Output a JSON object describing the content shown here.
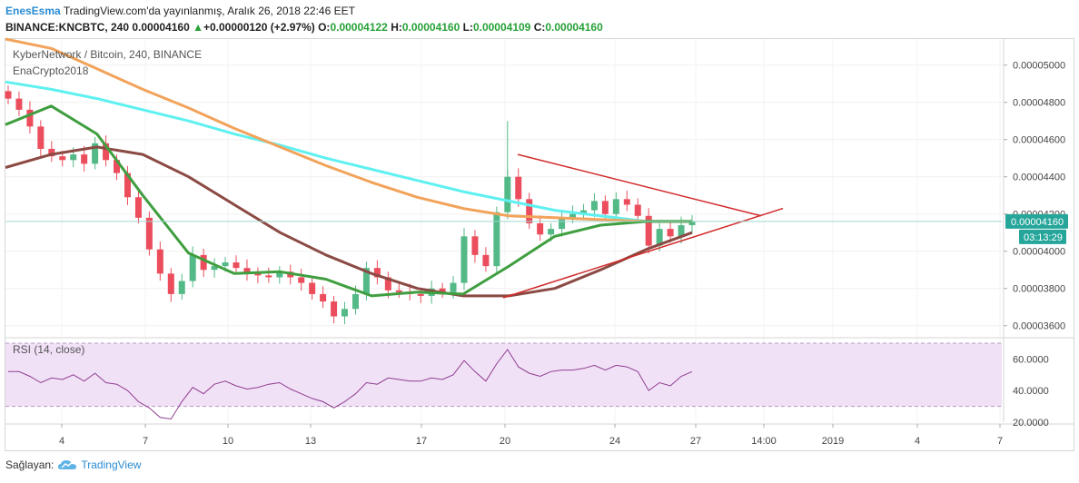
{
  "header": {
    "author": "EnesEsma",
    "published_text": " TradingView.com'da yayınlanmış, Aralık 26, 2018 22:46 EET",
    "symbol_line_prefix": "BINANCE:KNCBTC, 240  0.00004160 ",
    "change_arrow": "▲",
    "change_text": "+0.00000120 (+2.97%)",
    "o_label": "O:",
    "o_value": "0.00004122",
    "h_label": "H:",
    "h_value": "0.00004160",
    "l_label": "L:",
    "l_value": "0.00004109",
    "c_label": "C:",
    "c_value": "0.00004160"
  },
  "legend": {
    "title": "KyberNetwork / Bitcoin, 240, BINANCE",
    "subtitle": "EnaCrypto2018",
    "rsi_label": "RSI (14, close)"
  },
  "footer": {
    "provided_by": "Sağlayan:",
    "brand": "TradingView"
  },
  "colors": {
    "up": "#53b987",
    "down": "#eb4d5c",
    "ma_green": "#3f9e3f",
    "ma_brown": "#8b4a43",
    "ma_orange": "#f2a35b",
    "ma_cyan": "#5ff0f0",
    "trendline": "#d22a2a",
    "rsi_line": "#8e3d8e",
    "rsi_band": "#f1e1f7",
    "price_tag": "#26a69a",
    "accent": "#2a8cd2"
  },
  "chart_data": [
    {
      "type": "candlestick",
      "title": "KyberNetwork / Bitcoin, 240, BINANCE",
      "ylim": [
        3.55e-05,
        5.14e-05
      ],
      "y_ticks": [
        "0.00005000",
        "0.00004800",
        "0.00004600",
        "0.00004400",
        "0.00004200",
        "0.00004000",
        "0.00003800",
        "0.00003600"
      ],
      "y_tick_values": [
        5e-05,
        4.8e-05,
        4.6e-05,
        4.4e-05,
        4.2e-05,
        4e-05,
        3.8e-05,
        3.6e-05
      ],
      "x_ticks": [
        "4",
        "7",
        "10",
        "13",
        "17",
        "20",
        "24",
        "27",
        "14:00",
        "2019",
        "4",
        "7"
      ],
      "last_price": "0.00004160",
      "last_price_value": 4.16e-05,
      "countdown": "03:13:29",
      "grid": true,
      "closes": [
        4.82e-05,
        4.76e-05,
        4.67e-05,
        4.55e-05,
        4.51e-05,
        4.49e-05,
        4.52e-05,
        4.47e-05,
        4.58e-05,
        4.49e-05,
        4.42e-05,
        4.29e-05,
        4.18e-05,
        4.01e-05,
        3.88e-05,
        3.77e-05,
        3.84e-05,
        3.98e-05,
        3.9e-05,
        3.92e-05,
        3.94e-05,
        3.91e-05,
        3.88e-05,
        3.87e-05,
        3.86e-05,
        3.89e-05,
        3.86e-05,
        3.83e-05,
        3.77e-05,
        3.73e-05,
        3.65e-05,
        3.69e-05,
        3.77e-05,
        3.91e-05,
        3.86e-05,
        3.79e-05,
        3.78e-05,
        3.77e-05,
        3.76e-05,
        3.8e-05,
        3.78e-05,
        3.83e-05,
        4.08e-05,
        3.98e-05,
        3.92e-05,
        4.21e-05,
        4.4e-05,
        4.28e-05,
        4.15e-05,
        4.09e-05,
        4.12e-05,
        4.18e-05,
        4.2e-05,
        4.22e-05,
        4.27e-05,
        4.2e-05,
        4.28e-05,
        4.25e-05,
        4.19e-05,
        4.03e-05,
        4.12e-05,
        4.08e-05,
        4.14e-05,
        4.16e-05
      ],
      "moving_averages": [
        {
          "color": "#5ff0f0",
          "values": [
            4.91e-05,
            4.87e-05,
            4.82e-05,
            4.76e-05,
            4.7e-05,
            4.63e-05,
            4.57e-05,
            4.5e-05,
            4.44e-05,
            4.38e-05,
            4.32e-05,
            4.27e-05,
            4.22e-05,
            4.19e-05,
            4.16e-05,
            4.16e-05
          ]
        },
        {
          "color": "#f2a35b",
          "values": [
            5.2e-05,
            5.09e-05,
            4.98e-05,
            4.87e-05,
            4.77e-05,
            4.66e-05,
            4.56e-05,
            4.46e-05,
            4.37e-05,
            4.29e-05,
            4.23e-05,
            4.19e-05,
            4.18e-05,
            4.17e-05,
            4.16e-05,
            4.16e-05
          ]
        },
        {
          "color": "#8b4a43",
          "values": [
            4.45e-05,
            4.52e-05,
            4.56e-05,
            4.52e-05,
            4.4e-05,
            4.25e-05,
            4.1e-05,
            3.98e-05,
            3.88e-05,
            3.8e-05,
            3.76e-05,
            3.76e-05,
            3.8e-05,
            3.9e-05,
            4.01e-05,
            4.1e-05
          ]
        },
        {
          "color": "#3f9e3f",
          "values": [
            4.68e-05,
            4.78e-05,
            4.63e-05,
            4.3e-05,
            3.99e-05,
            3.88e-05,
            3.89e-05,
            3.85e-05,
            3.76e-05,
            3.78e-05,
            3.77e-05,
            3.92e-05,
            4.08e-05,
            4.14e-05,
            4.16e-05,
            4.16e-05
          ]
        }
      ],
      "trendlines": [
        {
          "from": [
            "Dec 20",
            4.52e-05
          ],
          "to": [
            "Dec 28",
            4.19e-05
          ]
        },
        {
          "from": [
            "Dec 20",
            3.75e-05
          ],
          "to": [
            "Dec 28",
            4.23e-05
          ]
        }
      ]
    },
    {
      "type": "line",
      "title": "RSI (14, close)",
      "ylim": [
        20,
        70
      ],
      "y_ticks": [
        "60.0000",
        "40.0000",
        "20.0000"
      ],
      "y_tick_values": [
        60,
        40,
        20
      ],
      "band": [
        30,
        70
      ],
      "values": [
        52,
        52,
        49,
        45,
        48,
        47,
        50,
        46,
        51,
        45,
        44,
        40,
        33,
        29,
        23,
        22,
        33,
        42,
        38,
        44,
        46,
        43,
        41,
        42,
        44,
        45,
        41,
        38,
        35,
        33,
        29,
        33,
        38,
        45,
        44,
        48,
        47,
        46,
        46,
        48,
        47,
        50,
        59,
        52,
        46,
        57,
        66,
        55,
        51,
        49,
        52,
        53,
        53,
        54,
        56,
        53,
        56,
        55,
        52,
        40,
        45,
        43,
        49,
        52
      ]
    }
  ]
}
